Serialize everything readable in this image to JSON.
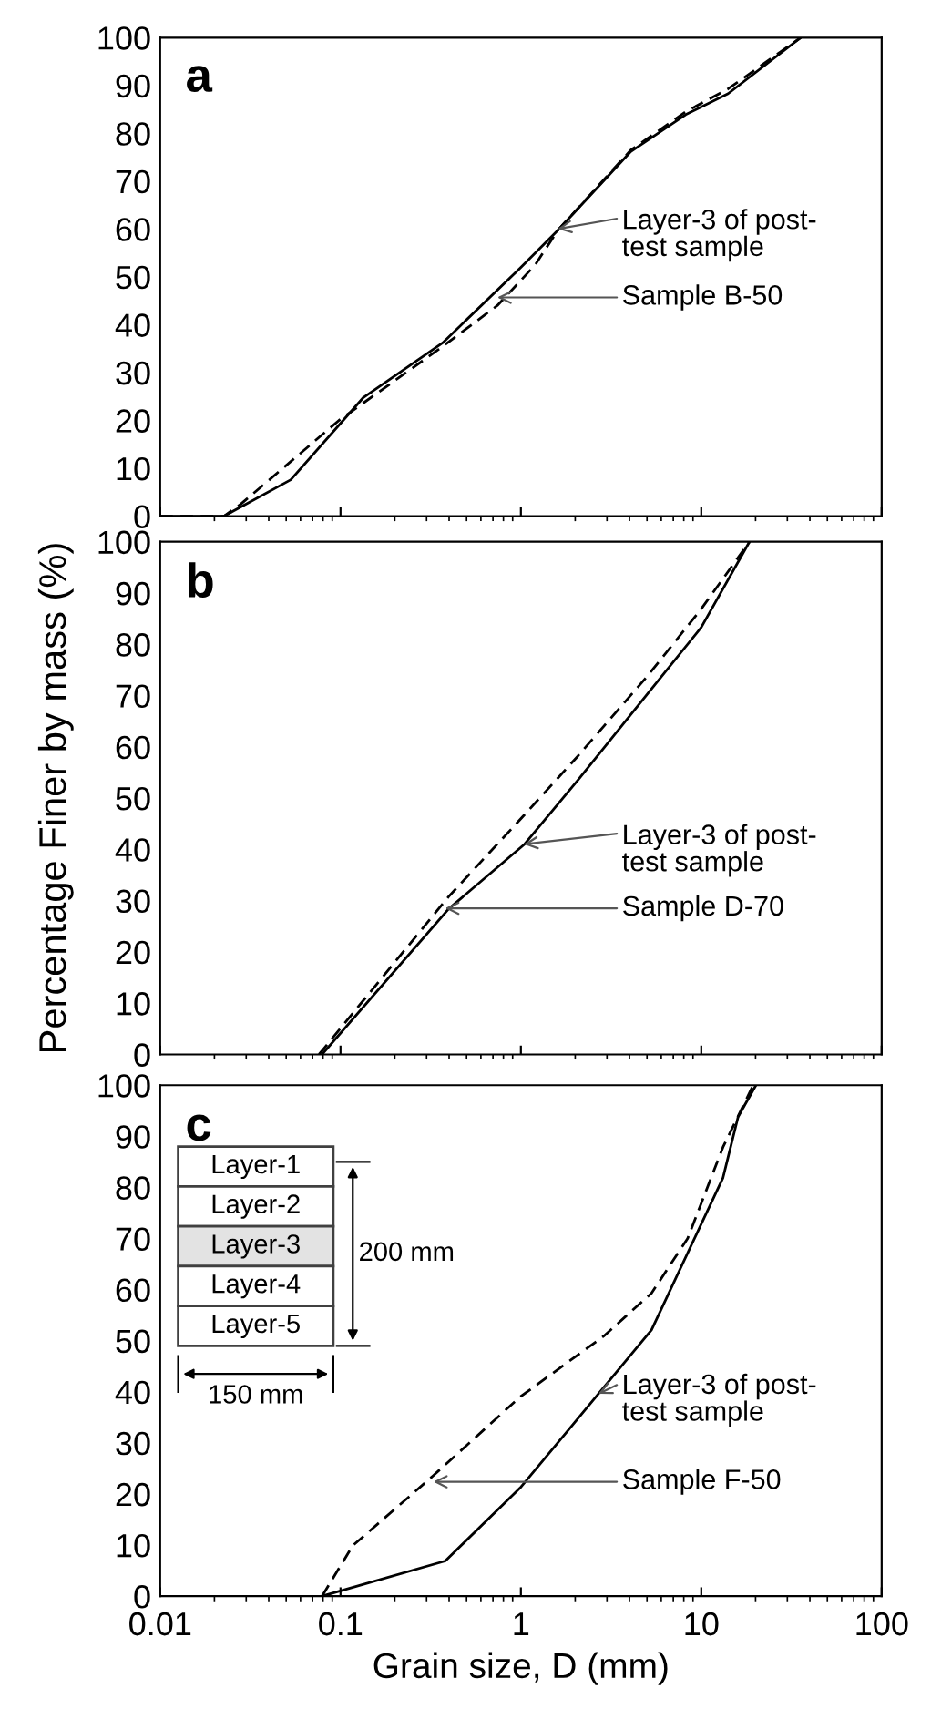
{
  "chart_data": [
    {
      "type": "line",
      "title": "a",
      "xlim": [
        0.01,
        100
      ],
      "xticks": [
        0.01,
        0.1,
        1,
        10,
        100
      ],
      "ylim": [
        0,
        100
      ],
      "yticks": [
        0,
        10,
        20,
        30,
        40,
        50,
        60,
        70,
        80,
        90,
        100
      ],
      "log": "x",
      "tick_labels": "y",
      "series": [
        {
          "color": "#000000",
          "line_style": "solid",
          "x": [
            0.01,
            0.0226,
            0.053,
            0.134,
            0.368,
            1.0,
            1.6,
            4.07,
            8.2,
            14.1,
            35.6
          ],
          "values": [
            0,
            0,
            7.6,
            24.8,
            36.2,
            52,
            59.7,
            76.2,
            83.9,
            88.3,
            100
          ]
        },
        {
          "color": "#000000",
          "line_style": "dashed",
          "x": [
            0.01,
            0.0226,
            0.028,
            0.098,
            0.37,
            0.74,
            1.2,
            1.6,
            4.07,
            8.2,
            14.1,
            35.6
          ],
          "values": [
            0,
            0,
            2.5,
            20,
            35.5,
            44,
            52.5,
            59.7,
            76.5,
            84.5,
            89.3,
            100
          ]
        }
      ],
      "annotations": [
        {
          "text": "Layer-3 of post-\ntest sample",
          "x": 1.6,
          "y": 60
        },
        {
          "text": "Sample B-50",
          "x": 0.74,
          "y": 45.7
        }
      ]
    },
    {
      "type": "line",
      "title": "b",
      "xlim": [
        0.01,
        100
      ],
      "xticks": [
        0.01,
        0.1,
        1,
        10,
        100
      ],
      "ylim": [
        0,
        100
      ],
      "yticks": [
        0,
        10,
        20,
        30,
        40,
        50,
        60,
        70,
        80,
        90,
        100
      ],
      "log": "x",
      "tick_labels": "y",
      "ylabel": "Percentage Finer by mass (%)",
      "series": [
        {
          "color": "#000000",
          "line_style": "solid",
          "x": [
            0.079,
            0.398,
            1.04,
            2.07,
            5.0,
            10,
            18.5
          ],
          "values": [
            0,
            28.4,
            40.9,
            53.5,
            70.2,
            83.3,
            100
          ]
        },
        {
          "color": "#000000",
          "line_style": "dashed",
          "x": [
            0.076,
            0.398,
            0.96,
            2.07,
            5.0,
            10,
            18.5
          ],
          "values": [
            0,
            30.8,
            45.3,
            58.2,
            73.7,
            86.9,
            100
          ]
        }
      ],
      "annotations": [
        {
          "text": "Layer-3 of post-\ntest sample",
          "x": 1.04,
          "y": 41
        },
        {
          "text": "Sample D-70",
          "x": 0.38,
          "y": 28.5
        }
      ]
    },
    {
      "type": "line",
      "title": "c",
      "xlim": [
        0.01,
        100
      ],
      "xticks": [
        0.01,
        0.1,
        1,
        10,
        100
      ],
      "ylim": [
        0,
        100
      ],
      "yticks": [
        0,
        10,
        20,
        30,
        40,
        50,
        60,
        70,
        80,
        90,
        100
      ],
      "log": "x",
      "xlabel": "Grain size, D (mm)",
      "series": [
        {
          "color": "#000000",
          "line_style": "solid",
          "x": [
            0.079,
            0.381,
            0.99,
            1.89,
            5.3,
            13.2,
            16,
            20.1
          ],
          "values": [
            0,
            6.9,
            21.2,
            33.1,
            52.1,
            81.9,
            93.8,
            100
          ]
        },
        {
          "color": "#000000",
          "line_style": "dashed",
          "x": [
            0.079,
            0.117,
            0.327,
            0.99,
            2.88,
            5.3,
            8.4,
            13.2,
            19.4
          ],
          "values": [
            0,
            9.9,
            23.6,
            39,
            50.9,
            59.3,
            70,
            87.9,
            100
          ]
        }
      ],
      "annotations": [
        {
          "text": "Layer-3 of post-\ntest sample",
          "x": 2.69,
          "y": 39.6
        },
        {
          "text": "Sample F-50",
          "x": 0.327,
          "y": 22.4
        },
        "Layer-1",
        "Layer-2",
        "Layer-3",
        "Layer-4",
        "Layer-5",
        "200 mm",
        "150 mm"
      ]
    }
  ]
}
